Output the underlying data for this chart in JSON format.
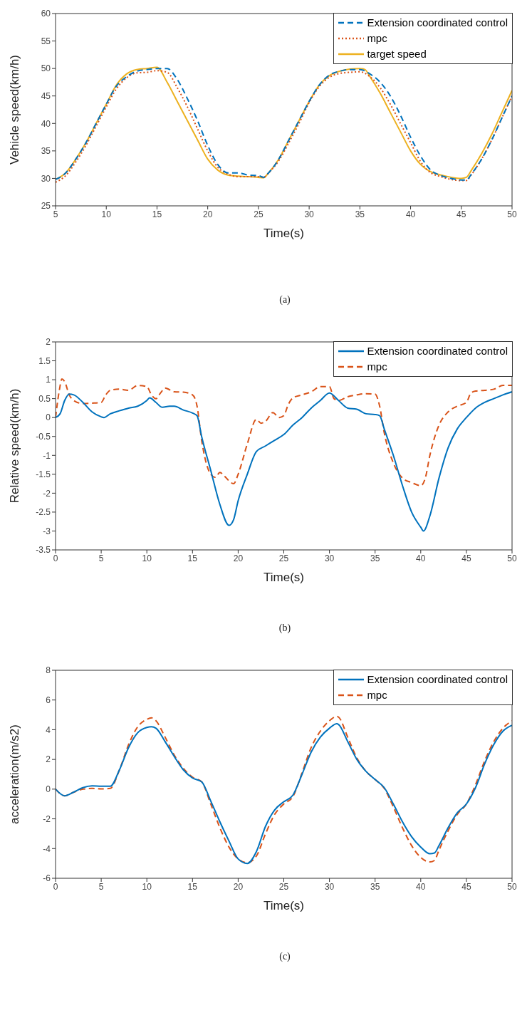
{
  "chart_data": [
    {
      "type": "line",
      "xlabel": "Time(s)",
      "ylabel": "Vehicle speed(km/h)",
      "annotations": [
        "(a)"
      ],
      "xlim": [
        5,
        50
      ],
      "ylim": [
        25,
        60
      ],
      "xticks": [
        5,
        10,
        15,
        20,
        25,
        30,
        35,
        40,
        45,
        50
      ],
      "yticks": [
        25,
        30,
        35,
        40,
        45,
        50,
        55,
        60
      ],
      "legend": "top right",
      "marker": "none",
      "series": [
        {
          "name": "Extension coordinated control",
          "color": "#0072bd",
          "line_style": "dashed",
          "x": [
            5,
            6,
            7,
            8,
            9,
            10,
            11,
            12,
            13,
            14,
            15,
            16,
            17,
            18,
            19,
            20,
            21,
            22,
            23,
            24,
            25,
            25.5,
            26,
            27,
            28,
            29,
            30,
            31,
            32,
            33,
            34,
            35,
            36,
            37,
            38,
            39,
            40,
            41,
            42,
            43,
            44,
            45,
            45.5,
            46,
            47,
            48,
            49,
            50
          ],
          "values": [
            29.8,
            31,
            33.5,
            36.5,
            40,
            43.5,
            46.8,
            48.5,
            49.5,
            49.8,
            50,
            50,
            48,
            44.5,
            40.5,
            36,
            32.5,
            31,
            31,
            30.6,
            30.5,
            30.2,
            31,
            33.5,
            37,
            40.5,
            44,
            47,
            48.8,
            49.5,
            49.8,
            49.8,
            49,
            47.5,
            45,
            41.5,
            37.5,
            34,
            31.5,
            30.5,
            30,
            29.7,
            29.7,
            30.8,
            33.5,
            37,
            41,
            45
          ]
        },
        {
          "name": "mpc",
          "color": "#d95319",
          "line_style": "dotted",
          "x": [
            5,
            6,
            7,
            8,
            9,
            10,
            11,
            12,
            13,
            14,
            15,
            16,
            17,
            18,
            19,
            20,
            21,
            22,
            23,
            24,
            25,
            25.5,
            26,
            27,
            28,
            29,
            30,
            31,
            32,
            33,
            34,
            35,
            36,
            37,
            38,
            39,
            40,
            41,
            42,
            43,
            44,
            45,
            45.5,
            46,
            47,
            48,
            49,
            50
          ],
          "values": [
            29.3,
            30.5,
            33,
            36,
            39.5,
            43,
            46.3,
            48.3,
            49.2,
            49.3,
            49.6,
            49.3,
            46.5,
            43,
            39,
            35,
            32,
            30.8,
            30.3,
            30.3,
            30.3,
            30.2,
            31,
            33.2,
            36.5,
            40,
            43.8,
            46.7,
            48.4,
            49.1,
            49.3,
            49.4,
            48.5,
            46.5,
            43.5,
            40,
            36.5,
            33,
            31,
            30.3,
            29.8,
            29.6,
            29.6,
            30.7,
            33.5,
            37,
            41,
            45
          ]
        },
        {
          "name": "target speed",
          "color": "#edb120",
          "line_style": "solid",
          "x": [
            5,
            6,
            7,
            8,
            9,
            10,
            11,
            12,
            13,
            14,
            15,
            16,
            17,
            18,
            19,
            20,
            21,
            22,
            23,
            24,
            25,
            25.5,
            26,
            27,
            28,
            29,
            30,
            31,
            32,
            33,
            34,
            35,
            35.5,
            36,
            37,
            38,
            39,
            40,
            41,
            42,
            43,
            44,
            45,
            45.5,
            46,
            47,
            48,
            49,
            50
          ],
          "values": [
            29.8,
            31,
            33.5,
            36.5,
            40,
            43.5,
            47,
            49,
            49.8,
            50,
            50.2,
            47.5,
            44,
            40.5,
            37,
            33.5,
            31.5,
            30.6,
            30.4,
            30.3,
            30.2,
            30.1,
            31,
            33.5,
            37,
            40.5,
            44,
            47,
            48.7,
            49.5,
            49.9,
            50,
            49.8,
            48.5,
            45.5,
            42,
            38.5,
            35,
            32.5,
            31.2,
            30.6,
            30.2,
            30,
            30.2,
            31.5,
            34.5,
            38,
            42,
            46
          ]
        }
      ]
    },
    {
      "type": "line",
      "xlabel": "Time(s)",
      "ylabel": "Relative speed(km/h)",
      "annotations": [
        "(b)"
      ],
      "xlim": [
        0,
        50
      ],
      "ylim": [
        -3.5,
        2
      ],
      "xticks": [
        0,
        5,
        10,
        15,
        20,
        25,
        30,
        35,
        40,
        45,
        50
      ],
      "yticks": [
        -3.5,
        -3,
        -2.5,
        -2,
        -1.5,
        -1,
        -0.5,
        0,
        0.5,
        1,
        1.5,
        2
      ],
      "legend": "top right",
      "marker": "none",
      "series": [
        {
          "name": "Extension coordinated control",
          "color": "#0072bd",
          "line_style": "solid",
          "x": [
            0,
            0.5,
            1,
            1.5,
            2,
            3,
            4,
            5,
            5.3,
            6,
            7,
            8,
            9,
            10,
            10.3,
            11,
            11.7,
            12.5,
            13,
            14,
            15,
            15.5,
            16,
            17,
            18,
            19,
            19.5,
            20,
            21,
            22,
            23,
            24,
            25,
            26,
            27,
            28,
            29,
            30,
            31,
            32,
            33,
            34,
            35,
            35.5,
            36,
            37,
            38,
            39,
            40,
            40.3,
            41,
            42,
            43,
            44,
            45,
            46,
            47,
            48,
            49,
            50
          ],
          "values": [
            0,
            0.1,
            0.45,
            0.62,
            0.6,
            0.4,
            0.15,
            0.02,
            0,
            0.1,
            0.18,
            0.25,
            0.3,
            0.45,
            0.52,
            0.4,
            0.27,
            0.3,
            0.3,
            0.2,
            0.12,
            0.05,
            -0.5,
            -1.4,
            -2.3,
            -2.85,
            -2.7,
            -2.2,
            -1.5,
            -0.9,
            -0.75,
            -0.6,
            -0.45,
            -0.2,
            0,
            0.25,
            0.45,
            0.65,
            0.45,
            0.25,
            0.22,
            0.1,
            0.08,
            0.05,
            -0.3,
            -1,
            -1.8,
            -2.5,
            -2.9,
            -3,
            -2.6,
            -1.6,
            -0.8,
            -0.3,
            0,
            0.25,
            0.4,
            0.5,
            0.6,
            0.68
          ]
        },
        {
          "name": "mpc",
          "color": "#d95319",
          "line_style": "dashed",
          "x": [
            0,
            0.4,
            0.7,
            1,
            1.5,
            2,
            3,
            4,
            5,
            5.5,
            6,
            7,
            8,
            9,
            10,
            10.5,
            11,
            11.5,
            12,
            13,
            14,
            15,
            15.5,
            16,
            16.5,
            17,
            17.5,
            18,
            18.5,
            19.5,
            20,
            21,
            22,
            22.5,
            23,
            23.8,
            24.5,
            25,
            25.5,
            26,
            27,
            28,
            29,
            30,
            30.5,
            31,
            32,
            33,
            34,
            35,
            35.5,
            36,
            37,
            38,
            39,
            40,
            40.5,
            41,
            42,
            43,
            44,
            45,
            45.5,
            46,
            47,
            48,
            49,
            50
          ],
          "values": [
            0,
            0.7,
            1.02,
            0.95,
            0.6,
            0.45,
            0.37,
            0.38,
            0.4,
            0.6,
            0.72,
            0.75,
            0.72,
            0.85,
            0.82,
            0.6,
            0.5,
            0.65,
            0.78,
            0.68,
            0.67,
            0.6,
            0.3,
            -0.6,
            -1.2,
            -1.5,
            -1.58,
            -1.45,
            -1.55,
            -1.75,
            -1.5,
            -0.7,
            -0.05,
            -0.15,
            -0.1,
            0.13,
            0,
            0.05,
            0.35,
            0.52,
            0.6,
            0.68,
            0.82,
            0.82,
            0.5,
            0.45,
            0.55,
            0.6,
            0.63,
            0.62,
            0.3,
            -0.4,
            -1.2,
            -1.6,
            -1.72,
            -1.8,
            -1.6,
            -1,
            -0.2,
            0.15,
            0.3,
            0.4,
            0.65,
            0.7,
            0.72,
            0.75,
            0.85,
            0.85
          ]
        }
      ]
    },
    {
      "type": "line",
      "xlabel": "Time(s)",
      "ylabel": "acceleration(m/s2)",
      "annotations": [
        "(c)"
      ],
      "xlim": [
        0,
        50
      ],
      "ylim": [
        -6,
        8
      ],
      "xticks": [
        0,
        5,
        10,
        15,
        20,
        25,
        30,
        35,
        40,
        45,
        50
      ],
      "yticks": [
        -6,
        -4,
        -2,
        0,
        2,
        4,
        6,
        8
      ],
      "legend": "top right",
      "marker": "none",
      "series": [
        {
          "name": "Extension coordinated control",
          "color": "#0072bd",
          "line_style": "solid",
          "x": [
            0,
            1,
            2,
            3,
            4,
            5,
            6,
            7,
            8,
            9,
            10,
            10.5,
            11,
            12,
            13,
            14,
            15,
            16,
            17,
            18,
            19,
            20,
            21,
            22,
            23,
            24,
            25,
            26,
            27,
            28,
            29,
            30,
            30.8,
            31,
            32,
            33,
            34,
            35,
            36,
            37,
            38,
            39,
            40,
            41,
            41.5,
            42,
            43,
            44,
            45,
            46,
            47,
            48,
            49,
            50
          ],
          "values": [
            0,
            -0.45,
            -0.2,
            0.1,
            0.22,
            0.2,
            0.2,
            1.3,
            2.8,
            3.8,
            4.15,
            4.2,
            4.1,
            3.2,
            2.2,
            1.3,
            0.75,
            0.5,
            -0.8,
            -2.2,
            -3.5,
            -4.7,
            -5,
            -4.2,
            -2.5,
            -1.4,
            -0.85,
            -0.4,
            1,
            2.5,
            3.5,
            4.1,
            4.4,
            4.35,
            3.2,
            2,
            1.2,
            0.65,
            0.1,
            -1,
            -2.2,
            -3.2,
            -3.9,
            -4.35,
            -4.3,
            -3.8,
            -2.6,
            -1.6,
            -1,
            0.1,
            1.7,
            3,
            3.9,
            4.3
          ]
        },
        {
          "name": "mpc",
          "color": "#d95319",
          "line_style": "dashed",
          "x": [
            0,
            1,
            2,
            3,
            4,
            5,
            6,
            7,
            8,
            9,
            10,
            10.5,
            11,
            12,
            13,
            14,
            15,
            16,
            17,
            18,
            19,
            20,
            21,
            22,
            23,
            24,
            25,
            26,
            27,
            28,
            29,
            30,
            30.8,
            31,
            32,
            33,
            34,
            35,
            36,
            37,
            38,
            39,
            40,
            41,
            41.5,
            42,
            43,
            44,
            45,
            46,
            47,
            48,
            49,
            50
          ],
          "values": [
            0,
            -0.45,
            -0.2,
            0,
            0.05,
            0.02,
            0.05,
            1.3,
            3,
            4.2,
            4.7,
            4.8,
            4.6,
            3.5,
            2.3,
            1.4,
            0.8,
            0.5,
            -1,
            -2.6,
            -3.9,
            -4.7,
            -4.95,
            -4.5,
            -3,
            -1.7,
            -1,
            -0.5,
            1.1,
            2.8,
            3.9,
            4.6,
            4.9,
            4.85,
            3.5,
            2.1,
            1.2,
            0.65,
            0.05,
            -1.2,
            -2.6,
            -3.8,
            -4.6,
            -4.9,
            -4.8,
            -4.1,
            -2.8,
            -1.7,
            -1,
            0.3,
            1.9,
            3.2,
            4.1,
            4.6
          ]
        }
      ]
    }
  ]
}
